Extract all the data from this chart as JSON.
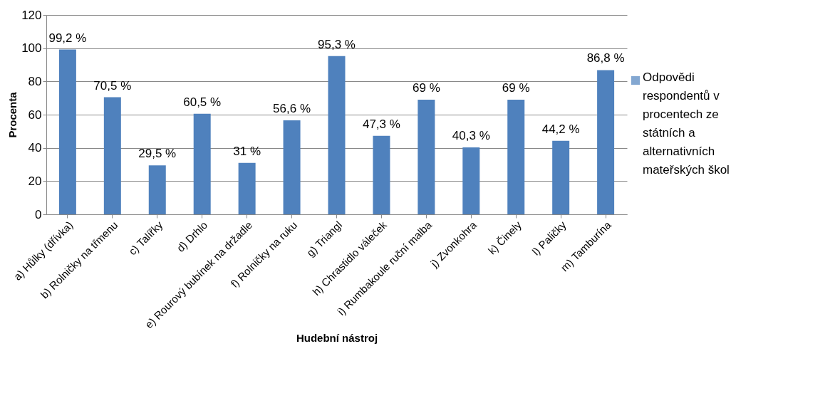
{
  "chart_data": {
    "type": "bar",
    "xlabel": "Hudební nástroj",
    "ylabel": "Procenta",
    "categories": [
      "a) Hůlky (dřívka)",
      "b) Rolničky na třmenu",
      "c) Talířky",
      "d) Drhlo",
      "e) Rourový bubínek na držadle",
      "f) Rolničky na ruku",
      "g) Triangl",
      "h) Chrastidlo váleček",
      "i) Rumbakoule ruční malba",
      "j) Zvonkohra",
      "k) Činely",
      "l) Paličky",
      "m) Tamburína"
    ],
    "series": [
      {
        "name": "Odpovědi respondentů v procentech ze státních a alternativních mateřských škol",
        "color": "#4f81bd",
        "values": [
          99.2,
          70.5,
          29.5,
          60.5,
          31,
          56.6,
          95.3,
          47.3,
          69,
          40.3,
          69,
          44.2,
          86.8
        ],
        "value_labels": [
          "99,2 %",
          "70,5 %",
          "29,5 %",
          "60,5 %",
          "31 %",
          "56,6 %",
          "95,3 %",
          "47,3 %",
          "69 %",
          "40,3 %",
          "69 %",
          "44,2 %",
          "86,8 %"
        ]
      }
    ],
    "ylim": [
      0,
      120
    ],
    "yticks": [
      0,
      20,
      40,
      60,
      80,
      100,
      120
    ],
    "grid": "y",
    "legend": "right"
  }
}
